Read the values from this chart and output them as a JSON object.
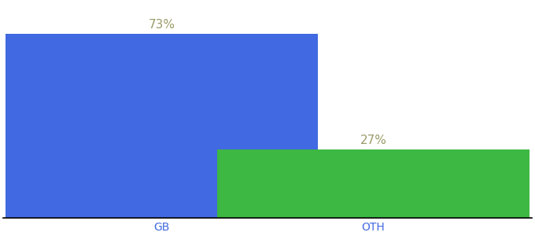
{
  "categories": [
    "GB",
    "OTH"
  ],
  "values": [
    73,
    27
  ],
  "bar_colors": [
    "#4169E1",
    "#3CB843"
  ],
  "label_color": "#9B9B6A",
  "axis_label_color": "#4169E1",
  "value_labels": [
    "73%",
    "27%"
  ],
  "ylim": [
    0,
    85
  ],
  "background_color": "#ffffff",
  "bar_width": 0.65,
  "label_fontsize": 11,
  "tick_fontsize": 10
}
